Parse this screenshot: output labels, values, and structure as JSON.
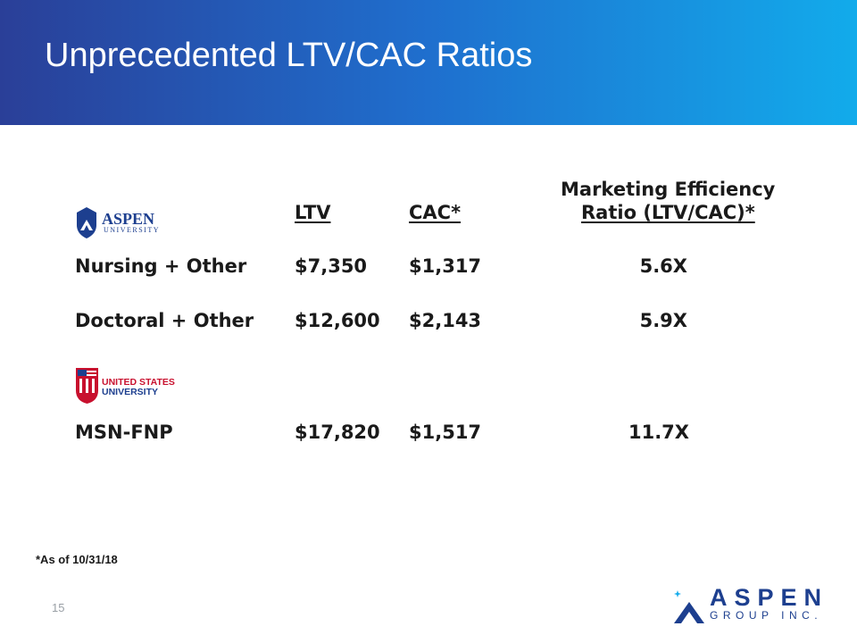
{
  "slide": {
    "title": "Unprecedented LTV/CAC Ratios",
    "footnote": "*As of 10/31/18",
    "page_number": "15"
  },
  "table": {
    "headers": {
      "ltv": "LTV",
      "cac": "CAC*",
      "ratio_line1": "Marketing Efficiency",
      "ratio_line2": "Ratio (LTV/CAC)*"
    },
    "rows": [
      {
        "program": "Nursing + Other",
        "ltv": "$7,350",
        "cac": "$1,317",
        "ratio": "5.6X"
      },
      {
        "program": "Doctoral + Other",
        "ltv": "$12,600",
        "cac": "$2,143",
        "ratio": "5.9X"
      },
      {
        "program": "MSN-FNP",
        "ltv": "$17,820",
        "cac": "$1,517",
        "ratio": "11.7X"
      }
    ]
  },
  "logos": {
    "aspen_university": {
      "line1": "ASPEN",
      "line2": "UNIVERSITY"
    },
    "united_states_university": {
      "line1": "UNITED STATES",
      "line2": "UNIVERSITY"
    },
    "aspen_group": {
      "line1": "ASPEN",
      "line2": "GROUP INC."
    }
  },
  "colors": {
    "banner_start": "#2a3f98",
    "banner_end": "#12abeb",
    "aspen_navy": "#1d3f8f",
    "usu_red": "#c8102e"
  }
}
